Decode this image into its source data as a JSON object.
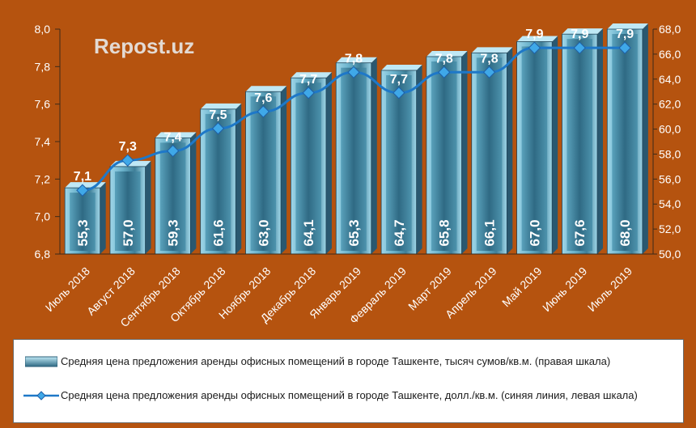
{
  "watermark": "Repost.uz",
  "colors": {
    "background": "#b5530f",
    "bar_top": "#bfe8f5",
    "bar_mid": "#6fb8d0",
    "bar_dark": "#2c5f78",
    "line": "#1e78c8",
    "marker": "#3fa8e8",
    "label": "#ffffff"
  },
  "legend": {
    "bars": "Средняя цена предложения аренды офисных помещений в городе Ташкенте, тысяч сумов/кв.м. (правая шкала)",
    "line": "Средняя цена предложения аренды офисных помещений в городе Ташкенте, долл./кв.м. (синяя линия, левая шкала)"
  },
  "chart_data": {
    "type": "bar",
    "categories": [
      "Июль 2018",
      "Август 2018",
      "Сентябрь 2018",
      "Октябрь 2018",
      "Ноябрь 2018",
      "Декабрь 2018",
      "Январь 2019",
      "Февраль 2019",
      "Март 2019",
      "Апрель 2019",
      "Май 2019",
      "Июнь 2019",
      "Июль 2019"
    ],
    "series": [
      {
        "name": "Средняя цена предложения аренды офисных помещений в городе Ташкенте, тысяч сумов/кв.м. (правая шкала)",
        "type": "bar",
        "axis": "right",
        "values": [
          55.3,
          57.0,
          59.3,
          61.6,
          63.0,
          64.1,
          65.3,
          64.7,
          65.8,
          66.1,
          67.0,
          67.6,
          68.0
        ],
        "labels": [
          "55,3",
          "57,0",
          "59,3",
          "61,6",
          "63,0",
          "64,1",
          "65,3",
          "64,7",
          "65,8",
          "66,1",
          "67,0",
          "67,6",
          "68,0"
        ]
      },
      {
        "name": "Средняя цена предложения аренды офисных помещений в городе Ташкенте, долл./кв.м. (синяя линия, левая шкала)",
        "type": "line",
        "axis": "left",
        "values": [
          7.14,
          7.3,
          7.35,
          7.47,
          7.56,
          7.66,
          7.77,
          7.66,
          7.77,
          7.77,
          7.9,
          7.9,
          7.9
        ],
        "labels": [
          "7,1",
          "7,3",
          "7,4",
          "7,5",
          "7,6",
          "7,7",
          "7,8",
          "7,7",
          "7,8",
          "7,8",
          "7,9",
          "7,9",
          "7,9"
        ]
      }
    ],
    "y_left": {
      "ylim": [
        6.8,
        8.0
      ],
      "ticks": [
        6.8,
        7.0,
        7.2,
        7.4,
        7.6,
        7.8,
        8.0
      ],
      "tick_labels": [
        "6,8",
        "7,0",
        "7,2",
        "7,4",
        "7,6",
        "7,8",
        "8,0"
      ]
    },
    "y_right": {
      "ylim": [
        50,
        68
      ],
      "ticks": [
        50,
        52,
        54,
        56,
        58,
        60,
        62,
        64,
        66,
        68
      ],
      "tick_labels": [
        "50,0",
        "52,0",
        "54,0",
        "56,0",
        "58,0",
        "60,0",
        "62,0",
        "64,0",
        "66,0",
        "68,0"
      ]
    },
    "grid": false,
    "legend_position": "bottom"
  }
}
